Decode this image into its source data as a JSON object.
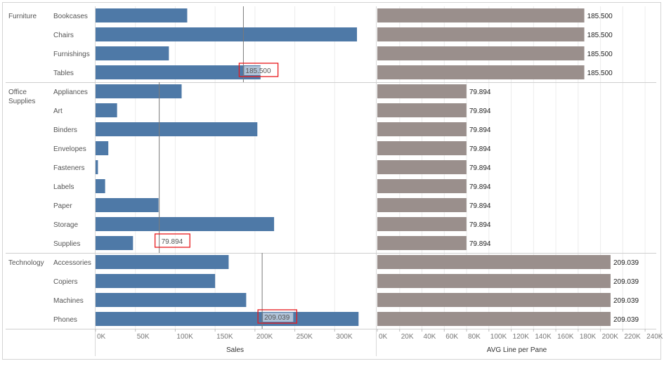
{
  "chart_data": {
    "type": "bar",
    "orientation": "horizontal",
    "groups": [
      {
        "name": "Furniture",
        "lines": [
          "Furniture"
        ],
        "avg": 185.5,
        "avg_label": "185.500",
        "items": [
          {
            "name": "Bookcases",
            "sales": 115000
          },
          {
            "name": "Chairs",
            "sales": 328000
          },
          {
            "name": "Furnishings",
            "sales": 92000
          },
          {
            "name": "Tables",
            "sales": 207000
          }
        ]
      },
      {
        "name": "Office Supplies",
        "lines": [
          "Office",
          "Supplies"
        ],
        "avg": 79.894,
        "avg_label": "79.894",
        "items": [
          {
            "name": "Appliances",
            "sales": 108000
          },
          {
            "name": "Art",
            "sales": 27000
          },
          {
            "name": "Binders",
            "sales": 203000
          },
          {
            "name": "Envelopes",
            "sales": 16000
          },
          {
            "name": "Fasteners",
            "sales": 3000
          },
          {
            "name": "Labels",
            "sales": 12000
          },
          {
            "name": "Paper",
            "sales": 79000
          },
          {
            "name": "Storage",
            "sales": 224000
          },
          {
            "name": "Supplies",
            "sales": 47000
          }
        ]
      },
      {
        "name": "Technology",
        "lines": [
          "Technology"
        ],
        "avg": 209.039,
        "avg_label": "209.039",
        "items": [
          {
            "name": "Accessories",
            "sales": 167000
          },
          {
            "name": "Copiers",
            "sales": 150000
          },
          {
            "name": "Machines",
            "sales": 189000
          },
          {
            "name": "Phones",
            "sales": 330000
          }
        ]
      }
    ],
    "reference_lines": [
      {
        "group": "Furniture",
        "sales": 185500,
        "label": "185.500"
      },
      {
        "group": "Office Supplies",
        "sales": 79894,
        "label": "79.894"
      },
      {
        "group": "Technology",
        "sales": 209039,
        "label": "209.039"
      }
    ],
    "left_axis": {
      "title": "Sales",
      "ticks": [
        "0K",
        "50K",
        "100K",
        "150K",
        "200K",
        "250K",
        "300K"
      ],
      "tick_values": [
        0,
        50000,
        100000,
        150000,
        200000,
        250000,
        300000
      ],
      "xlim": [
        0,
        350000
      ]
    },
    "right_axis": {
      "title": "AVG Line per Pane",
      "ticks": [
        "0K",
        "20K",
        "40K",
        "60K",
        "80K",
        "100K",
        "120K",
        "140K",
        "160K",
        "180K",
        "200K",
        "220K",
        "240K"
      ],
      "tick_values": [
        0,
        20,
        40,
        60,
        80,
        100,
        120,
        140,
        160,
        180,
        200,
        220,
        240
      ],
      "xlim": [
        0,
        250
      ]
    },
    "colors": {
      "left_bar": "#4e79a7",
      "right_bar": "#9a8f8c",
      "highlight_box": "#e8191c",
      "ref_line": "#7a7a7a"
    },
    "grid": true
  }
}
